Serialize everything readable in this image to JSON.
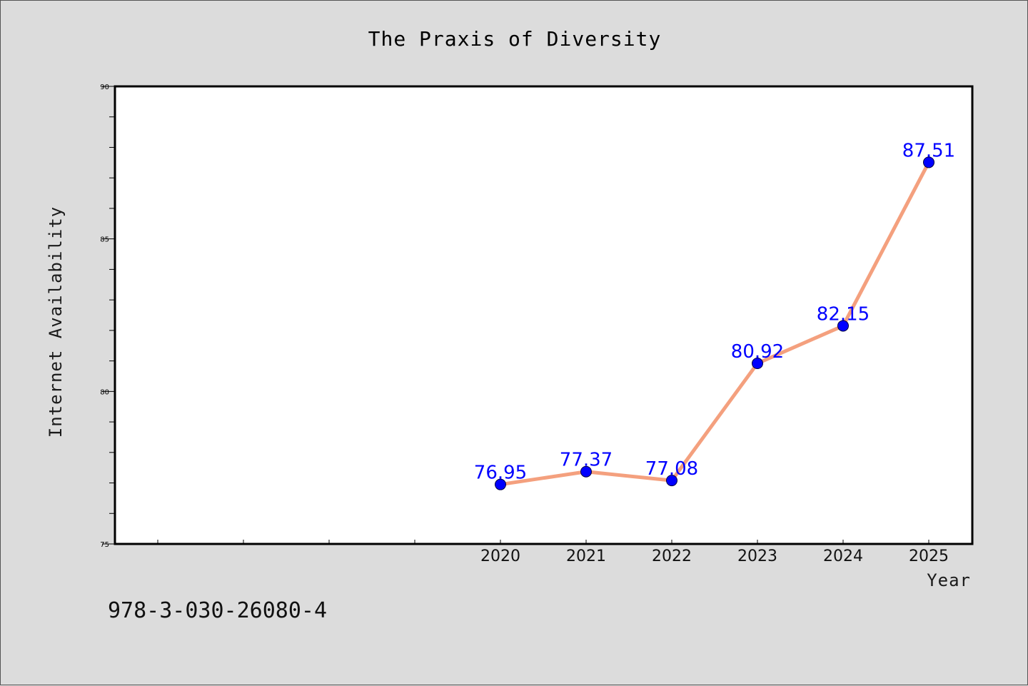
{
  "chart_data": {
    "type": "line",
    "title": "The Praxis of Diversity",
    "xlabel": "Year",
    "ylabel": "Internet Availability",
    "x": [
      "2020",
      "2021",
      "2022",
      "2023",
      "2024",
      "2025"
    ],
    "series": [
      {
        "values": [
          76.95,
          77.37,
          77.08,
          80.92,
          82.15,
          87.51
        ],
        "data_labels": [
          "76.95",
          "77.37",
          "77.08",
          "80.92",
          "82.15",
          "87.51"
        ]
      }
    ],
    "ylim": [
      75,
      90
    ],
    "y_ticks": [
      "75",
      "80",
      "85",
      "90"
    ],
    "grid": false,
    "legend": "none",
    "line_color": "#f4a07e",
    "marker_color": "#0000ff",
    "label_color": "#0000ff",
    "background_color": "#dcdcdc",
    "plot_background": "#ffffff"
  },
  "footer": {
    "isbn": "978-3-030-26080-4"
  }
}
